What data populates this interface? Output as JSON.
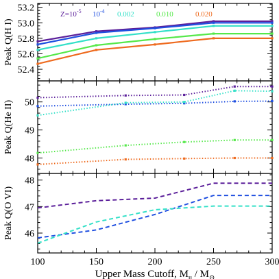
{
  "colors": {
    "Z=10^-5": "#5b1f9a",
    "10^-4": "#1f4fe0",
    "0.002": "#33e0c8",
    "0.010": "#55e84a",
    "0.020": "#ee6a1e"
  },
  "chart_data": {
    "type": "line",
    "xlabel": "Upper Mass Cutoff, M_u / M_⊙",
    "xlim": [
      100,
      300
    ],
    "xticks": [
      100,
      150,
      200,
      250,
      300
    ],
    "legend": {
      "placement": "top-left inside top panel",
      "entries": [
        {
          "label_main": "Z=10",
          "label_sup": "-5",
          "color_key": "Z=10^-5"
        },
        {
          "label_main": "10",
          "label_sup": "-4",
          "color_key": "10^-4"
        },
        {
          "label_main": "0.002",
          "label_sup": "",
          "color_key": "0.002"
        },
        {
          "label_main": "0.010",
          "label_sup": "",
          "color_key": "0.010"
        },
        {
          "label_main": "0.020",
          "label_sup": "",
          "color_key": "0.020"
        }
      ]
    },
    "panels": [
      {
        "ylabel": "Peak Q(H I)",
        "ylim": [
          52.25,
          53.25
        ],
        "yticks": [
          52.4,
          52.6,
          52.8,
          53.0,
          53.2
        ],
        "ytick_labels": [
          "52.4",
          "52.6",
          "52.8",
          "53.0",
          "53.2"
        ],
        "line_style": "solid",
        "markers": true,
        "series": [
          {
            "key": "Z=10^-5",
            "x": [
              100,
              150,
              200,
              250,
              300
            ],
            "y": [
              52.76,
              52.89,
              52.94,
              53.02,
              53.02
            ]
          },
          {
            "key": "10^-4",
            "x": [
              100,
              150,
              200,
              250,
              300
            ],
            "y": [
              52.72,
              52.87,
              52.93,
              53.0,
              53.0
            ]
          },
          {
            "key": "0.002",
            "x": [
              100,
              150,
              200,
              250,
              300
            ],
            "y": [
              52.65,
              52.8,
              52.88,
              52.96,
              52.96
            ]
          },
          {
            "key": "0.010",
            "x": [
              100,
              150,
              200,
              250,
              300
            ],
            "y": [
              52.54,
              52.71,
              52.79,
              52.86,
              52.86
            ]
          },
          {
            "key": "0.020",
            "x": [
              100,
              150,
              200,
              250,
              300
            ],
            "y": [
              52.47,
              52.65,
              52.72,
              52.8,
              52.8
            ]
          }
        ]
      },
      {
        "ylabel": "Peak Q(He II)",
        "ylim": [
          47.45,
          50.75
        ],
        "yticks": [
          48,
          49,
          50
        ],
        "ytick_labels": [
          "48",
          "49",
          "50"
        ],
        "line_style": "dotted",
        "markers": true,
        "series": [
          {
            "key": "Z=10^-5",
            "x": [
              100,
              175,
              225,
              268,
              300
            ],
            "y": [
              50.15,
              50.23,
              50.25,
              50.55,
              50.55
            ]
          },
          {
            "key": "10^-4",
            "x": [
              100,
              175,
              225,
              268,
              300
            ],
            "y": [
              49.85,
              49.92,
              49.95,
              50.02,
              50.03
            ]
          },
          {
            "key": "0.002",
            "x": [
              100,
              175,
              225,
              268,
              300
            ],
            "y": [
              49.52,
              49.97,
              50.0,
              50.4,
              50.38
            ]
          },
          {
            "key": "0.010",
            "x": [
              100,
              175,
              225,
              268,
              300
            ],
            "y": [
              48.18,
              48.45,
              48.57,
              48.64,
              48.64
            ]
          },
          {
            "key": "0.020",
            "x": [
              100,
              175,
              225,
              268,
              300
            ],
            "y": [
              47.77,
              47.95,
              47.98,
              48.0,
              48.0
            ]
          }
        ]
      },
      {
        "ylabel": "Peak Q(O VI)",
        "ylim": [
          45.25,
          48.25
        ],
        "yticks": [
          46,
          47,
          48
        ],
        "ytick_labels": [
          "46",
          "47",
          "48"
        ],
        "line_style": "dashed",
        "markers": false,
        "series": [
          {
            "key": "Z=10^-5",
            "x": [
              100,
              150,
              200,
              250,
              300
            ],
            "y": [
              46.95,
              47.22,
              47.32,
              47.88,
              47.88
            ]
          },
          {
            "key": "10^-4",
            "x": [
              100,
              150,
              200,
              250,
              300
            ],
            "y": [
              45.82,
              46.12,
              46.7,
              47.42,
              47.42
            ]
          },
          {
            "key": "0.002",
            "x": [
              100,
              150,
              200,
              250,
              300
            ],
            "y": [
              45.62,
              46.42,
              46.88,
              47.02,
              47.02
            ]
          }
        ]
      }
    ]
  }
}
